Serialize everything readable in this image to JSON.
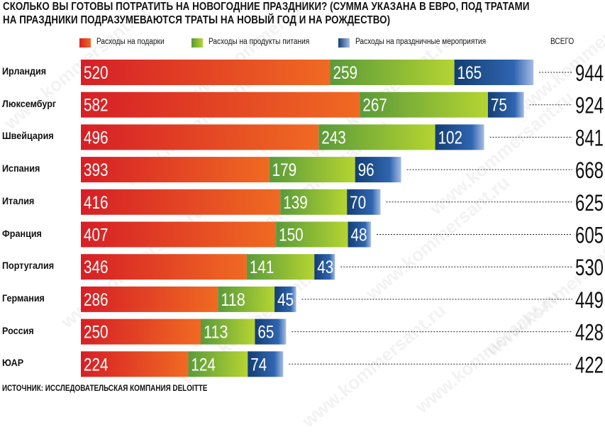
{
  "title_lines": [
    "СКОЛЬКО ВЫ ГОТОВЫ ПОТРАТИТЬ НА НОВОГОДНИЕ ПРАЗДНИКИ? (СУММА УКАЗАНА В ЕВРО, ПОД ТРАТАМИ",
    "НА ПРАЗДНИКИ ПОДРАЗУМЕВАЮТСЯ ТРАТЫ НА НОВЫЙ ГОД И НА РОЖДЕСТВО)"
  ],
  "legend": {
    "gifts": "Расходы на подарки",
    "food": "Расходы на продукты питания",
    "events": "Расходы на праздничные мероприятия",
    "total": "ВСЕГО"
  },
  "source": "ИСТОЧНИК: ИССЛЕДОВАТЕЛЬСКАЯ КОМПАНИЯ DELOITTE",
  "watermark": "www.kommersant.ru",
  "colors": {
    "gifts_start": "#d61f26",
    "gifts_end": "#f06a22",
    "food_start": "#5a9a3a",
    "food_end": "#b5d431",
    "events_start": "#133e73",
    "events_end": "#a5bde4",
    "total_text": "#111111"
  },
  "chart_data": {
    "type": "bar",
    "orientation": "horizontal",
    "stacked": true,
    "categories": [
      "Ирландия",
      "Люксембург",
      "Швейцария",
      "Испания",
      "Италия",
      "Франция",
      "Португалия",
      "Германия",
      "Россия",
      "ЮАР"
    ],
    "series": [
      {
        "name": "Расходы на подарки",
        "values": [
          520,
          582,
          496,
          393,
          416,
          407,
          346,
          286,
          250,
          224
        ]
      },
      {
        "name": "Расходы на продукты питания",
        "values": [
          259,
          267,
          243,
          179,
          139,
          150,
          141,
          118,
          113,
          124
        ]
      },
      {
        "name": "Расходы на праздничные мероприятия",
        "values": [
          165,
          75,
          102,
          96,
          70,
          48,
          43,
          45,
          65,
          74
        ]
      }
    ],
    "totals": [
      944,
      924,
      841,
      668,
      625,
      605,
      530,
      449,
      428,
      422
    ],
    "xlim": [
      0,
      944
    ],
    "legend_position": "top",
    "grid": false
  }
}
